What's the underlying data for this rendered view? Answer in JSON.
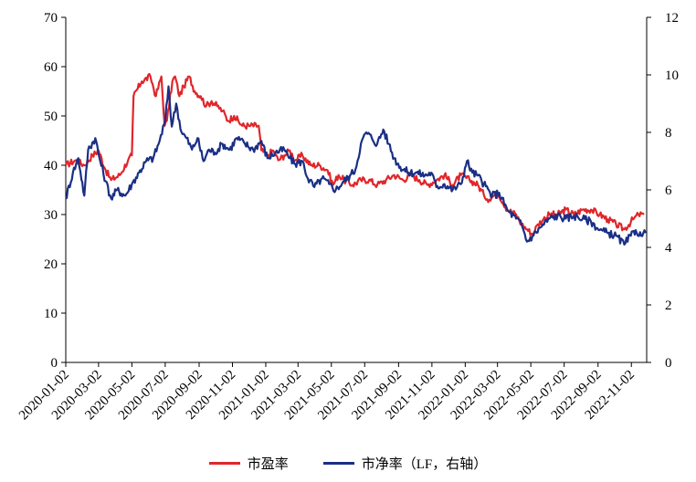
{
  "chart_data": {
    "type": "line",
    "x_tick_labels": [
      "2020-01-02",
      "2020-03-02",
      "2020-05-02",
      "2020-07-02",
      "2020-09-02",
      "2020-11-02",
      "2021-01-02",
      "2021-03-02",
      "2021-05-02",
      "2021-07-02",
      "2021-09-02",
      "2021-11-02",
      "2022-01-02",
      "2022-03-02",
      "2022-05-02",
      "2022-07-02",
      "2022-09-02",
      "2022-11-02"
    ],
    "x_range": [
      "2020-01-02",
      "2022-11-30"
    ],
    "y_left": {
      "min": 0,
      "max": 70,
      "ticks": [
        0,
        10,
        20,
        30,
        40,
        50,
        60,
        70
      ]
    },
    "y_right": {
      "min": 0,
      "max": 12,
      "ticks": [
        0,
        2,
        4,
        6,
        8,
        10,
        12
      ]
    },
    "grid": false,
    "legend_position": "bottom",
    "series": [
      {
        "name": "市盈率",
        "axis": "left",
        "color": "#e0262b",
        "points": [
          [
            "2020-01-02",
            40
          ],
          [
            "2020-01-20",
            41
          ],
          [
            "2020-02-05",
            40
          ],
          [
            "2020-02-20",
            42
          ],
          [
            "2020-03-02",
            43
          ],
          [
            "2020-03-15",
            39
          ],
          [
            "2020-03-25",
            37
          ],
          [
            "2020-04-10",
            38
          ],
          [
            "2020-04-25",
            41
          ],
          [
            "2020-05-02",
            42
          ],
          [
            "2020-05-05",
            54
          ],
          [
            "2020-05-20",
            57
          ],
          [
            "2020-06-05",
            58
          ],
          [
            "2020-06-15",
            54
          ],
          [
            "2020-06-25",
            58
          ],
          [
            "2020-07-01",
            48
          ],
          [
            "2020-07-05",
            49
          ],
          [
            "2020-07-15",
            57
          ],
          [
            "2020-07-20",
            58
          ],
          [
            "2020-07-28",
            54
          ],
          [
            "2020-08-05",
            56
          ],
          [
            "2020-08-15",
            58
          ],
          [
            "2020-08-25",
            55
          ],
          [
            "2020-09-05",
            54
          ],
          [
            "2020-09-15",
            52
          ],
          [
            "2020-09-25",
            53
          ],
          [
            "2020-10-05",
            52
          ],
          [
            "2020-10-15",
            51
          ],
          [
            "2020-10-25",
            49
          ],
          [
            "2020-11-05",
            50
          ],
          [
            "2020-11-20",
            48
          ],
          [
            "2020-12-05",
            48
          ],
          [
            "2020-12-20",
            48
          ],
          [
            "2020-12-25",
            43
          ],
          [
            "2021-01-05",
            42
          ],
          [
            "2021-01-15",
            43
          ],
          [
            "2021-01-25",
            41
          ],
          [
            "2021-02-05",
            42
          ],
          [
            "2021-02-15",
            43
          ],
          [
            "2021-02-25",
            41
          ],
          [
            "2021-03-10",
            42
          ],
          [
            "2021-03-25",
            40
          ],
          [
            "2021-04-10",
            40
          ],
          [
            "2021-04-25",
            39
          ],
          [
            "2021-05-05",
            36
          ],
          [
            "2021-05-15",
            38
          ],
          [
            "2021-05-25",
            37
          ],
          [
            "2021-06-10",
            36
          ],
          [
            "2021-06-25",
            37
          ],
          [
            "2021-07-10",
            37
          ],
          [
            "2021-07-25",
            36
          ],
          [
            "2021-08-10",
            37
          ],
          [
            "2021-08-25",
            38
          ],
          [
            "2021-09-10",
            37
          ],
          [
            "2021-09-25",
            38
          ],
          [
            "2021-10-10",
            37
          ],
          [
            "2021-10-25",
            36
          ],
          [
            "2021-11-10",
            37
          ],
          [
            "2021-11-25",
            38
          ],
          [
            "2021-12-10",
            36
          ],
          [
            "2021-12-25",
            38
          ],
          [
            "2022-01-10",
            37
          ],
          [
            "2022-01-25",
            36
          ],
          [
            "2022-02-05",
            34
          ],
          [
            "2022-02-15",
            33
          ],
          [
            "2022-02-25",
            34
          ],
          [
            "2022-03-05",
            34
          ],
          [
            "2022-03-20",
            31
          ],
          [
            "2022-04-05",
            30
          ],
          [
            "2022-04-15",
            28
          ],
          [
            "2022-04-25",
            27
          ],
          [
            "2022-05-05",
            26
          ],
          [
            "2022-05-15",
            28
          ],
          [
            "2022-05-25",
            29
          ],
          [
            "2022-06-05",
            30
          ],
          [
            "2022-06-20",
            30
          ],
          [
            "2022-07-05",
            31
          ],
          [
            "2022-07-20",
            30
          ],
          [
            "2022-08-05",
            31
          ],
          [
            "2022-08-20",
            31
          ],
          [
            "2022-09-05",
            30
          ],
          [
            "2022-09-20",
            29
          ],
          [
            "2022-10-05",
            28
          ],
          [
            "2022-10-20",
            27
          ],
          [
            "2022-11-05",
            29
          ],
          [
            "2022-11-15",
            30
          ],
          [
            "2022-11-25",
            30
          ]
        ]
      },
      {
        "name": "市净率（LF，右轴）",
        "axis": "right",
        "color": "#1a2f86",
        "points": [
          [
            "2020-01-02",
            5.7
          ],
          [
            "2020-01-15",
            6.6
          ],
          [
            "2020-01-25",
            7.1
          ],
          [
            "2020-02-05",
            5.8
          ],
          [
            "2020-02-12",
            7.4
          ],
          [
            "2020-02-25",
            7.8
          ],
          [
            "2020-03-05",
            7.0
          ],
          [
            "2020-03-15",
            6.3
          ],
          [
            "2020-03-25",
            5.7
          ],
          [
            "2020-04-05",
            6.0
          ],
          [
            "2020-04-20",
            5.8
          ],
          [
            "2020-05-02",
            6.2
          ],
          [
            "2020-05-15",
            6.6
          ],
          [
            "2020-05-28",
            7.0
          ],
          [
            "2020-06-10",
            7.1
          ],
          [
            "2020-06-20",
            7.6
          ],
          [
            "2020-07-02",
            8.4
          ],
          [
            "2020-07-08",
            9.6
          ],
          [
            "2020-07-14",
            8.2
          ],
          [
            "2020-07-22",
            9.0
          ],
          [
            "2020-08-01",
            8.0
          ],
          [
            "2020-08-10",
            7.8
          ],
          [
            "2020-08-20",
            7.4
          ],
          [
            "2020-08-30",
            7.8
          ],
          [
            "2020-09-10",
            7.0
          ],
          [
            "2020-09-20",
            7.4
          ],
          [
            "2020-10-01",
            7.3
          ],
          [
            "2020-10-15",
            7.6
          ],
          [
            "2020-10-28",
            7.4
          ],
          [
            "2020-11-10",
            7.8
          ],
          [
            "2020-11-25",
            7.6
          ],
          [
            "2020-12-10",
            7.4
          ],
          [
            "2020-12-25",
            7.7
          ],
          [
            "2021-01-05",
            7.1
          ],
          [
            "2021-01-20",
            7.3
          ],
          [
            "2021-02-05",
            7.4
          ],
          [
            "2021-02-15",
            7.1
          ],
          [
            "2021-02-25",
            6.9
          ],
          [
            "2021-03-10",
            7.0
          ],
          [
            "2021-03-20",
            6.4
          ],
          [
            "2021-04-01",
            6.1
          ],
          [
            "2021-04-15",
            6.4
          ],
          [
            "2021-04-28",
            6.2
          ],
          [
            "2021-05-10",
            6.0
          ],
          [
            "2021-05-25",
            6.3
          ],
          [
            "2021-06-05",
            6.5
          ],
          [
            "2021-06-15",
            6.7
          ],
          [
            "2021-06-25",
            7.6
          ],
          [
            "2021-07-05",
            8.0
          ],
          [
            "2021-07-15",
            7.8
          ],
          [
            "2021-07-25",
            7.6
          ],
          [
            "2021-08-05",
            8.1
          ],
          [
            "2021-08-15",
            7.6
          ],
          [
            "2021-08-25",
            7.1
          ],
          [
            "2021-09-05",
            6.8
          ],
          [
            "2021-09-20",
            6.6
          ],
          [
            "2021-10-05",
            6.6
          ],
          [
            "2021-10-20",
            6.5
          ],
          [
            "2021-11-01",
            6.6
          ],
          [
            "2021-11-10",
            6.1
          ],
          [
            "2021-11-25",
            6.2
          ],
          [
            "2021-12-10",
            6.0
          ],
          [
            "2021-12-25",
            6.2
          ],
          [
            "2022-01-05",
            7.0
          ],
          [
            "2022-01-15",
            6.6
          ],
          [
            "2022-01-25",
            6.5
          ],
          [
            "2022-02-05",
            6.2
          ],
          [
            "2022-02-20",
            5.8
          ],
          [
            "2022-03-05",
            5.9
          ],
          [
            "2022-03-20",
            5.3
          ],
          [
            "2022-04-05",
            5.0
          ],
          [
            "2022-04-15",
            4.8
          ],
          [
            "2022-04-25",
            4.2
          ],
          [
            "2022-05-05",
            4.4
          ],
          [
            "2022-05-20",
            4.7
          ],
          [
            "2022-06-05",
            5.0
          ],
          [
            "2022-06-20",
            5.1
          ],
          [
            "2022-07-05",
            5.0
          ],
          [
            "2022-07-20",
            5.1
          ],
          [
            "2022-08-05",
            5.0
          ],
          [
            "2022-08-20",
            4.9
          ],
          [
            "2022-09-05",
            4.6
          ],
          [
            "2022-09-20",
            4.5
          ],
          [
            "2022-10-05",
            4.4
          ],
          [
            "2022-10-20",
            4.1
          ],
          [
            "2022-11-01",
            4.4
          ],
          [
            "2022-11-10",
            4.6
          ],
          [
            "2022-11-20",
            4.4
          ],
          [
            "2022-11-28",
            4.5
          ]
        ]
      }
    ]
  }
}
